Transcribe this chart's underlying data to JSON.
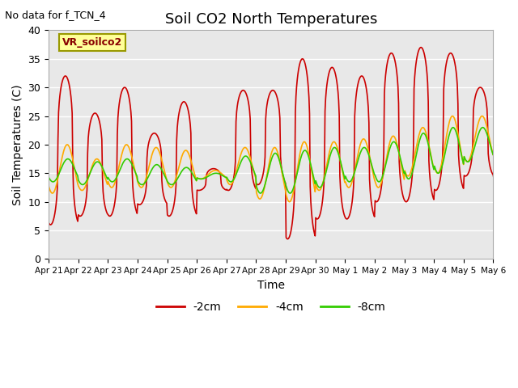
{
  "title": "Soil CO2 North Temperatures",
  "no_data_text": "No data for f_TCN_4",
  "legend_box_label": "VR_soilco2",
  "xlabel": "Time",
  "ylabel": "Soil Temperatures (C)",
  "ylim": [
    0,
    40
  ],
  "yticks": [
    0,
    5,
    10,
    15,
    20,
    25,
    30,
    35,
    40
  ],
  "xtick_labels": [
    "Apr 21",
    "Apr 22",
    "Apr 23",
    "Apr 24",
    "Apr 25",
    "Apr 26",
    "Apr 27",
    "Apr 28",
    "Apr 29",
    "Apr 30",
    "May 1",
    "May 2",
    "May 3",
    "May 4",
    "May 5",
    "May 6"
  ],
  "colors": {
    "red": "#cc0000",
    "orange": "#ffaa00",
    "green": "#33cc00",
    "bg": "#e8e8e8",
    "legend_bg": "#ffff99",
    "legend_border": "#999900"
  },
  "line_width": 1.2,
  "legend_entries": [
    "-2cm",
    "-4cm",
    "-8cm"
  ],
  "red_peaks": [
    32,
    25.5,
    30,
    22,
    27.5,
    15.8,
    29.5,
    29.5,
    35,
    33.5,
    32,
    36,
    37,
    36,
    30,
    29
  ],
  "red_troughs": [
    6,
    7.5,
    7.5,
    9.5,
    7.5,
    12,
    12,
    13,
    3.5,
    7,
    7,
    10,
    10,
    12,
    14.5,
    14
  ],
  "orange_peaks": [
    20,
    17.5,
    20,
    19.5,
    19,
    15.5,
    19.5,
    19.5,
    20.5,
    20.5,
    21,
    21.5,
    23,
    25,
    25,
    25
  ],
  "orange_troughs": [
    11.5,
    12,
    12.5,
    12.5,
    12.5,
    14,
    13,
    10.5,
    10,
    12,
    12.5,
    12.5,
    14.5,
    15,
    17,
    18
  ],
  "green_peaks": [
    17.5,
    17,
    17.5,
    16.5,
    16,
    15,
    18,
    18.5,
    19,
    19.5,
    19.5,
    20.5,
    22,
    23,
    23,
    22.5
  ],
  "green_troughs": [
    13.5,
    13,
    13.5,
    13,
    13,
    14,
    13.5,
    11.5,
    11.5,
    12.5,
    13.5,
    13.5,
    14,
    15,
    17,
    18
  ]
}
